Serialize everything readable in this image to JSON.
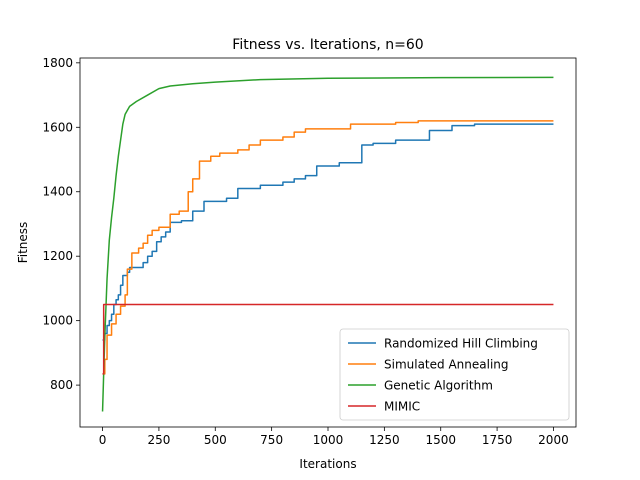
{
  "chart_data": {
    "type": "line",
    "title": "Fitness vs. Iterations, n=60",
    "xlabel": "Iterations",
    "ylabel": "Fitness",
    "xlim": [
      -100,
      2100
    ],
    "ylim": [
      670,
      1815
    ],
    "xticks": [
      0,
      250,
      500,
      750,
      1000,
      1250,
      1500,
      1750,
      2000
    ],
    "yticks": [
      800,
      1000,
      1200,
      1400,
      1600,
      1800
    ],
    "grid": false,
    "legend_position": "lower-right",
    "series": [
      {
        "name": "Randomized Hill Climbing",
        "color": "#1f77b4",
        "step": true,
        "points": [
          [
            0,
            940
          ],
          [
            10,
            960
          ],
          [
            20,
            985
          ],
          [
            30,
            1000
          ],
          [
            40,
            1020
          ],
          [
            50,
            1050
          ],
          [
            60,
            1065
          ],
          [
            70,
            1080
          ],
          [
            80,
            1110
          ],
          [
            90,
            1140
          ],
          [
            110,
            1150
          ],
          [
            120,
            1165
          ],
          [
            180,
            1180
          ],
          [
            200,
            1200
          ],
          [
            220,
            1215
          ],
          [
            240,
            1245
          ],
          [
            260,
            1260
          ],
          [
            280,
            1275
          ],
          [
            300,
            1305
          ],
          [
            350,
            1310
          ],
          [
            400,
            1340
          ],
          [
            450,
            1370
          ],
          [
            550,
            1380
          ],
          [
            600,
            1410
          ],
          [
            700,
            1420
          ],
          [
            800,
            1430
          ],
          [
            850,
            1440
          ],
          [
            900,
            1450
          ],
          [
            950,
            1480
          ],
          [
            1050,
            1490
          ],
          [
            1150,
            1545
          ],
          [
            1200,
            1550
          ],
          [
            1300,
            1560
          ],
          [
            1450,
            1590
          ],
          [
            1550,
            1605
          ],
          [
            1650,
            1610
          ],
          [
            2000,
            1610
          ]
        ]
      },
      {
        "name": "Simulated Annealing",
        "color": "#ff7f0e",
        "step": true,
        "points": [
          [
            0,
            835
          ],
          [
            10,
            880
          ],
          [
            20,
            955
          ],
          [
            40,
            990
          ],
          [
            60,
            1020
          ],
          [
            80,
            1045
          ],
          [
            100,
            1080
          ],
          [
            110,
            1160
          ],
          [
            130,
            1210
          ],
          [
            160,
            1225
          ],
          [
            180,
            1240
          ],
          [
            200,
            1265
          ],
          [
            220,
            1280
          ],
          [
            250,
            1290
          ],
          [
            300,
            1330
          ],
          [
            340,
            1340
          ],
          [
            380,
            1400
          ],
          [
            400,
            1440
          ],
          [
            430,
            1495
          ],
          [
            480,
            1510
          ],
          [
            520,
            1520
          ],
          [
            600,
            1530
          ],
          [
            650,
            1545
          ],
          [
            700,
            1560
          ],
          [
            800,
            1570
          ],
          [
            850,
            1585
          ],
          [
            900,
            1595
          ],
          [
            1100,
            1610
          ],
          [
            1300,
            1615
          ],
          [
            1400,
            1620
          ],
          [
            2000,
            1620
          ]
        ]
      },
      {
        "name": "Genetic Algorithm",
        "color": "#2ca02c",
        "step": false,
        "points": [
          [
            0,
            718
          ],
          [
            10,
            950
          ],
          [
            20,
            1130
          ],
          [
            30,
            1250
          ],
          [
            40,
            1320
          ],
          [
            50,
            1380
          ],
          [
            60,
            1450
          ],
          [
            70,
            1510
          ],
          [
            80,
            1560
          ],
          [
            90,
            1610
          ],
          [
            100,
            1640
          ],
          [
            120,
            1665
          ],
          [
            150,
            1680
          ],
          [
            200,
            1700
          ],
          [
            250,
            1720
          ],
          [
            300,
            1728
          ],
          [
            400,
            1735
          ],
          [
            500,
            1740
          ],
          [
            700,
            1748
          ],
          [
            1000,
            1752
          ],
          [
            1500,
            1754
          ],
          [
            2000,
            1755
          ]
        ]
      },
      {
        "name": "MIMIC",
        "color": "#d62728",
        "step": true,
        "points": [
          [
            0,
            835
          ],
          [
            5,
            1050
          ],
          [
            2000,
            1050
          ]
        ]
      }
    ]
  }
}
